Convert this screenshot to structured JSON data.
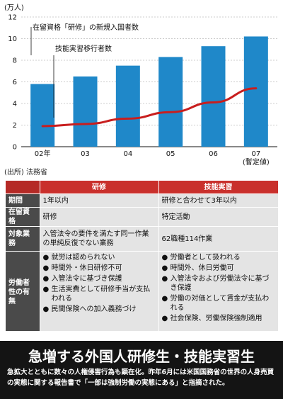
{
  "chart_data": {
    "type": "bar",
    "unit_label": "(万人)",
    "categories": [
      "02年",
      "03",
      "04",
      "05",
      "06",
      "07"
    ],
    "category_note": "(暫定値)",
    "ylim": [
      0,
      12
    ],
    "yticks": [
      0,
      2,
      4,
      6,
      8,
      10,
      12
    ],
    "series": [
      {
        "name": "在留資格「研修」の新規入国者数",
        "type": "bar",
        "values": [
          5.8,
          6.5,
          7.5,
          8.3,
          9.3,
          10.2
        ],
        "color": "#1f88c9"
      },
      {
        "name": "技能実習移行者数",
        "type": "line",
        "values": [
          1.9,
          2.1,
          2.6,
          3.2,
          4.1,
          5.4
        ],
        "color": "#c81e1e"
      }
    ],
    "source": "(出所) 法務省"
  },
  "table": {
    "headers": [
      "研修",
      "技能実習"
    ],
    "rows": [
      {
        "label": "期間",
        "col1": "1年以内",
        "col2": "研修と合わせて3年以内"
      },
      {
        "label": "在留資格",
        "col1": "研修",
        "col2": "特定活動"
      },
      {
        "label": "対象業務",
        "col1": "入管法令の要件を満たす同一作業の単純反復でない業務",
        "col2": "62職種114作業"
      }
    ],
    "worker": {
      "label": "労働者性の有無",
      "col1": [
        "就労は認められない",
        "時間外・休日研修不可",
        "入管法令に基づき保護",
        "生活実費として研修手当が支払われる",
        "民間保険への加入義務づけ"
      ],
      "col2": [
        "労働者として扱われる",
        "時間外、休日労働可",
        "入管法令および労働法令に基づき保護",
        "労働の対価として賃金が支払われる",
        "社会保険、労働保険強制適用"
      ]
    }
  },
  "bottom": {
    "headline": "急増する外国人研修生・技能実習生",
    "body": "急拡大とともに数々の人権侵害行為も顕在化。昨年6月には米国国務省の世界の人身売買の実態に関する報告書で「一部は強制労働の実態にある」と指摘された。"
  }
}
